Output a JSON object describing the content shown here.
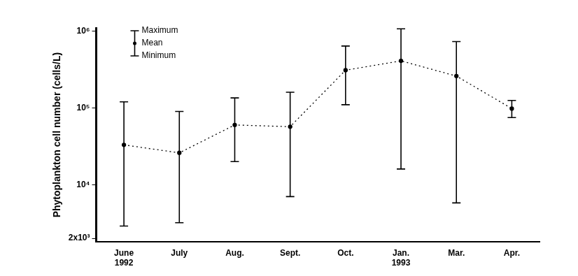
{
  "chart_data": {
    "type": "line",
    "y_label": "Phytoplankton cell number (cells/L)",
    "categories": [
      "June",
      "July",
      "Aug.",
      "Sept.",
      "Oct.",
      "Jan.",
      "Mar.",
      "Apr."
    ],
    "year_labels": [
      "1992",
      null,
      null,
      null,
      null,
      "1993",
      null,
      null
    ],
    "series": [
      {
        "name": "Mean",
        "color": "#000000",
        "line_style": "dotted",
        "marker": "circle",
        "values": [
          33000,
          26000,
          60000,
          57000,
          310000,
          410000,
          260000,
          98000
        ]
      }
    ],
    "error_bars": {
      "max_name": "Maximum",
      "max": [
        120000,
        90000,
        135000,
        160000,
        640000,
        1070000,
        730000,
        125000
      ],
      "min_name": "Minimum",
      "min": [
        2900,
        3200,
        20000,
        7000,
        110000,
        16000,
        5800,
        75000
      ]
    },
    "log": "y",
    "ylim": [
      1800,
      1100000
    ],
    "yticks": [
      {
        "value": 2000,
        "label": "2x10³"
      },
      {
        "value": 10000,
        "label": "10⁴"
      },
      {
        "value": 100000,
        "label": "10⁵"
      },
      {
        "value": 1000000,
        "label": "10⁶"
      }
    ],
    "grid": false,
    "legend": "top-left"
  }
}
